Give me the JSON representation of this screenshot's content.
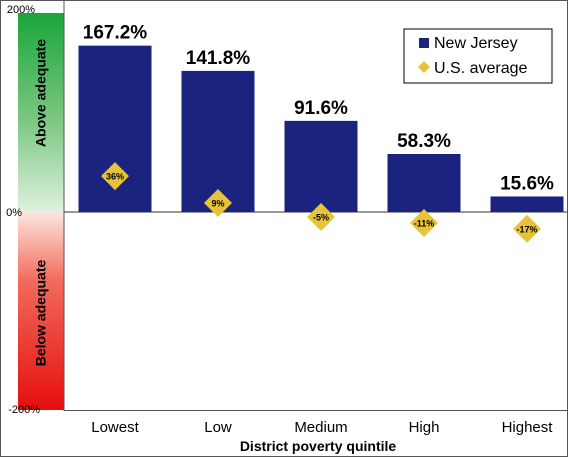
{
  "chart_data": {
    "type": "bar",
    "categories": [
      "Lowest",
      "Low",
      "Medium",
      "High",
      "Highest"
    ],
    "series": [
      {
        "name": "New Jersey",
        "values": [
          167.2,
          141.8,
          91.6,
          58.3,
          15.6
        ],
        "color": "#1a237e"
      },
      {
        "name": "U.S. average",
        "values": [
          36,
          9,
          -5,
          -11,
          -17
        ],
        "color": "#e8c33a",
        "marker": "diamond"
      }
    ],
    "bar_labels": [
      "167.2%",
      "141.8%",
      "91.6%",
      "58.3%",
      "15.6%"
    ],
    "marker_labels": [
      "36%",
      "9%",
      "-5%",
      "-11%",
      "-17%"
    ],
    "xlabel": "District poverty quintile",
    "ylim": [
      -200,
      200
    ],
    "yticks": [
      "200%",
      "0%",
      "-200%"
    ],
    "band_labels": {
      "top": "Above adequate",
      "bottom": "Below adequate"
    },
    "legend_position": "top-right",
    "grid": false
  }
}
